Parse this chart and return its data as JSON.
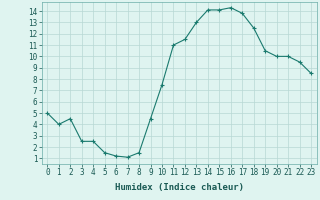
{
  "x": [
    0,
    1,
    2,
    3,
    4,
    5,
    6,
    7,
    8,
    9,
    10,
    11,
    12,
    13,
    14,
    15,
    16,
    17,
    18,
    19,
    20,
    21,
    22,
    23
  ],
  "y": [
    5,
    4,
    4.5,
    2.5,
    2.5,
    1.5,
    1.2,
    1.1,
    1.5,
    4.5,
    7.5,
    11,
    11.5,
    13,
    14.1,
    14.1,
    14.3,
    13.8,
    12.5,
    10.5,
    10,
    10,
    9.5,
    8.5
  ],
  "line_color": "#1a7a6e",
  "marker": "+",
  "marker_size": 3.5,
  "linewidth": 0.8,
  "bg_color": "#dff4f0",
  "grid_color": "#b8d8d4",
  "xlabel": "Humidex (Indice chaleur)",
  "xlabel_fontsize": 6.5,
  "tick_fontsize": 5.5,
  "xlim": [
    -0.5,
    23.5
  ],
  "ylim": [
    0.5,
    14.8
  ],
  "yticks": [
    1,
    2,
    3,
    4,
    5,
    6,
    7,
    8,
    9,
    10,
    11,
    12,
    13,
    14
  ],
  "xticks": [
    0,
    1,
    2,
    3,
    4,
    5,
    6,
    7,
    8,
    9,
    10,
    11,
    12,
    13,
    14,
    15,
    16,
    17,
    18,
    19,
    20,
    21,
    22,
    23
  ]
}
